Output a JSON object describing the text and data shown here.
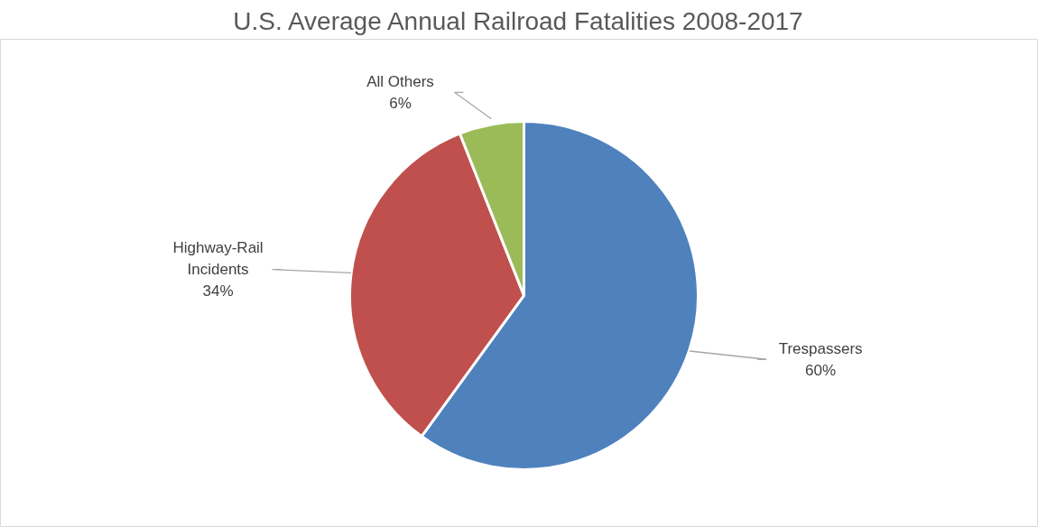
{
  "chart_data": {
    "type": "pie",
    "title": "U.S. Average Annual Railroad Fatalities 2008-2017",
    "categories": [
      "Trespassers",
      "Highway-Rail Incidents",
      "All Others"
    ],
    "values": [
      60,
      34,
      6
    ],
    "colors": [
      "#4f81bd",
      "#c0504d",
      "#9bbb59"
    ],
    "value_labels": [
      "60%",
      "34%",
      "6%"
    ],
    "legend": false
  }
}
